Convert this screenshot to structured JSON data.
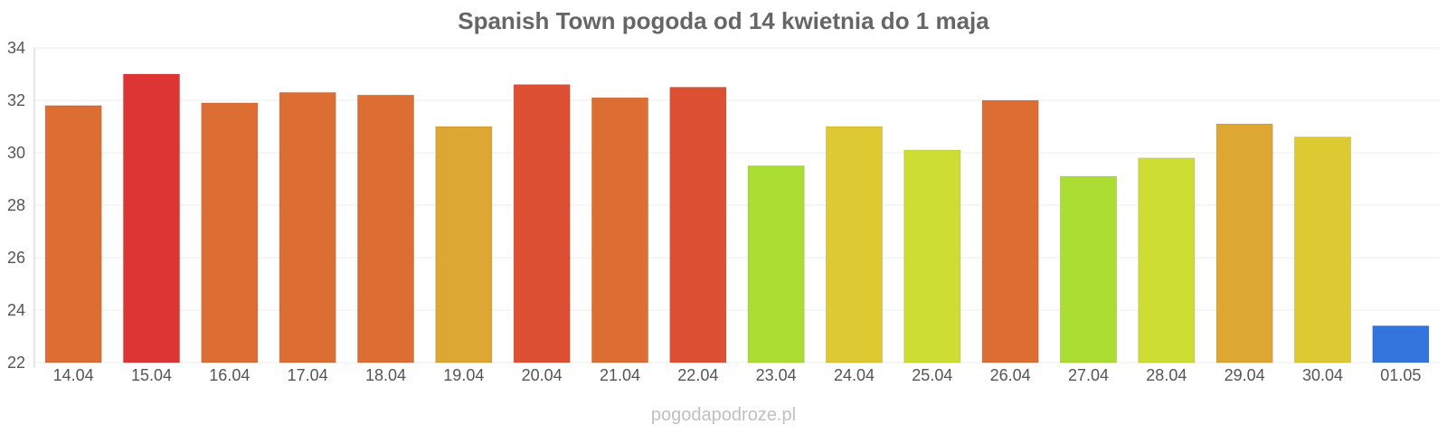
{
  "chart_data": {
    "type": "bar",
    "title": "Spanish Town pogoda od 14 kwietnia do 1 maja",
    "xlabel": "",
    "ylabel": "",
    "ylim": [
      22,
      34
    ],
    "yticks": [
      22,
      24,
      26,
      28,
      30,
      32,
      34
    ],
    "grid": true,
    "legend": "none",
    "categories": [
      "14.04",
      "15.04",
      "16.04",
      "17.04",
      "18.04",
      "19.04",
      "20.04",
      "21.04",
      "22.04",
      "23.04",
      "24.04",
      "25.04",
      "26.04",
      "27.04",
      "28.04",
      "29.04",
      "30.04",
      "01.05"
    ],
    "values": [
      31.8,
      33.0,
      31.9,
      32.3,
      32.2,
      31.0,
      32.6,
      32.1,
      32.5,
      29.5,
      31.0,
      30.1,
      32.0,
      29.1,
      29.8,
      31.1,
      30.6,
      23.4
    ],
    "colors": [
      "#dd6e33",
      "#dd3533",
      "#dd6e33",
      "#dd6e33",
      "#dd6e33",
      "#dda733",
      "#dd5033",
      "#dd6e33",
      "#dd5033",
      "#acdd33",
      "#ddca33",
      "#cedd33",
      "#dd6e33",
      "#acdd33",
      "#cedd33",
      "#dda733",
      "#ddca33",
      "#3375dd"
    ]
  },
  "watermark": "pogodapodroze.pl"
}
